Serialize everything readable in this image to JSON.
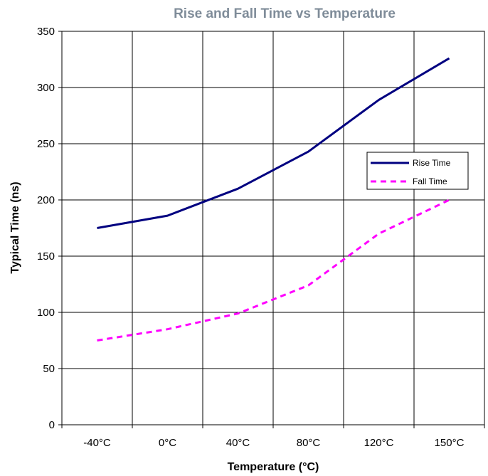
{
  "chart_data": {
    "type": "line",
    "title": "Rise and Fall Time vs Temperature",
    "xlabel": "Temperature (°C)",
    "ylabel": "Typical Time (ns)",
    "categories": [
      "-40°C",
      "0°C",
      "40°C",
      "80°C",
      "120°C",
      "150°C"
    ],
    "ylim": [
      0,
      350
    ],
    "yticks": [
      0,
      50,
      100,
      150,
      200,
      250,
      300,
      350
    ],
    "grid": true,
    "legend_position": "right",
    "series": [
      {
        "name": "Rise Time",
        "values": [
          175,
          186,
          210,
          243,
          289,
          326
        ],
        "color": "#000080",
        "style": "solid"
      },
      {
        "name": "Fall Time",
        "values": [
          75,
          85,
          99,
          124,
          170,
          200
        ],
        "color": "#ff00ff",
        "style": "dashed"
      }
    ]
  }
}
